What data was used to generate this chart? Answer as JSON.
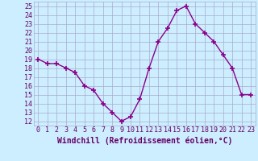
{
  "x": [
    0,
    1,
    2,
    3,
    4,
    5,
    6,
    7,
    8,
    9,
    10,
    11,
    12,
    13,
    14,
    15,
    16,
    17,
    18,
    19,
    20,
    21,
    22,
    23
  ],
  "y": [
    19,
    18.5,
    18.5,
    18,
    17.5,
    16,
    15.5,
    14,
    13,
    12,
    12.5,
    14.5,
    18,
    21,
    22.5,
    24.5,
    25,
    23,
    22,
    21,
    19.5,
    18,
    15,
    15
  ],
  "line_color": "#8b008b",
  "marker": "+",
  "marker_size": 4,
  "marker_lw": 1.2,
  "bg_color": "#cceeff",
  "grid_color": "#aaaacc",
  "xlabel": "Windchill (Refroidissement éolien,°C)",
  "xlabel_fontsize": 7,
  "xlabel_color": "#660066",
  "tick_color": "#660066",
  "tick_fontsize": 6,
  "ylabel_ticks": [
    12,
    13,
    14,
    15,
    16,
    17,
    18,
    19,
    20,
    21,
    22,
    23,
    24,
    25
  ],
  "xlim": [
    -0.5,
    23.5
  ],
  "ylim": [
    11.5,
    25.5
  ]
}
